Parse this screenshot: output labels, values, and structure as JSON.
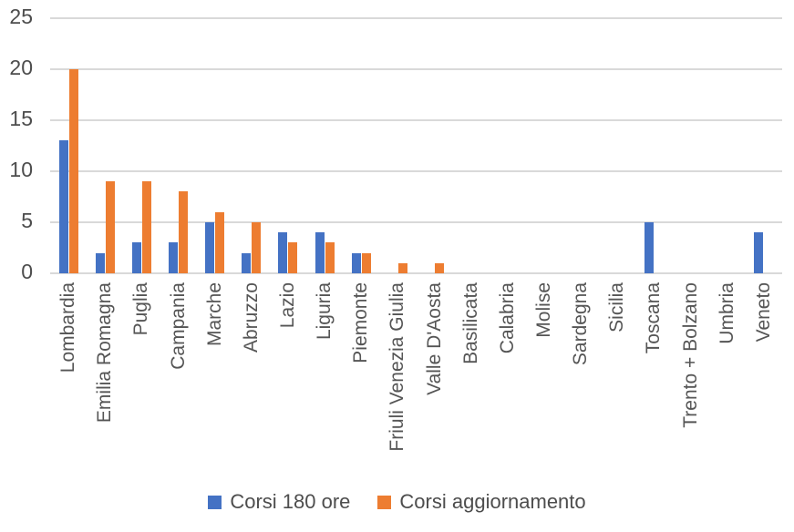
{
  "chart_data": {
    "type": "bar",
    "title": "",
    "xlabel": "",
    "ylabel": "",
    "categories": [
      "Lombardia",
      "Emilia Romagna",
      "Puglia",
      "Campania",
      "Marche",
      "Abruzzo",
      "Lazio",
      "Liguria",
      "Piemonte",
      "Friuli Venezia Giulia",
      "Valle D'Aosta",
      "Basilicata",
      "Calabria",
      "Molise",
      "Sardegna",
      "Sicilia",
      "Toscana",
      "Trento + Bolzano",
      "Umbria",
      "Veneto"
    ],
    "series": [
      {
        "name": "Corsi 180 ore",
        "color": "#4472C4",
        "values": [
          13,
          2,
          3,
          3,
          5,
          2,
          4,
          4,
          2,
          0,
          0,
          0,
          0,
          0,
          0,
          0,
          5,
          0,
          0,
          4
        ]
      },
      {
        "name": "Corsi aggiornamento",
        "color": "#ED7D31",
        "values": [
          20,
          9,
          9,
          8,
          6,
          5,
          3,
          3,
          2,
          1,
          1,
          0,
          0,
          0,
          0,
          0,
          0,
          0,
          0,
          0
        ]
      }
    ],
    "y_ticks": [
      0,
      5,
      10,
      15,
      20,
      25
    ],
    "ylim": [
      0,
      25
    ],
    "grid": true,
    "legend_position": "bottom"
  },
  "colors": {
    "series_blue": "#4472C4",
    "series_orange": "#ED7D31",
    "gridline": "#d9d9d9",
    "axis_text": "#555555",
    "background": "#ffffff"
  }
}
